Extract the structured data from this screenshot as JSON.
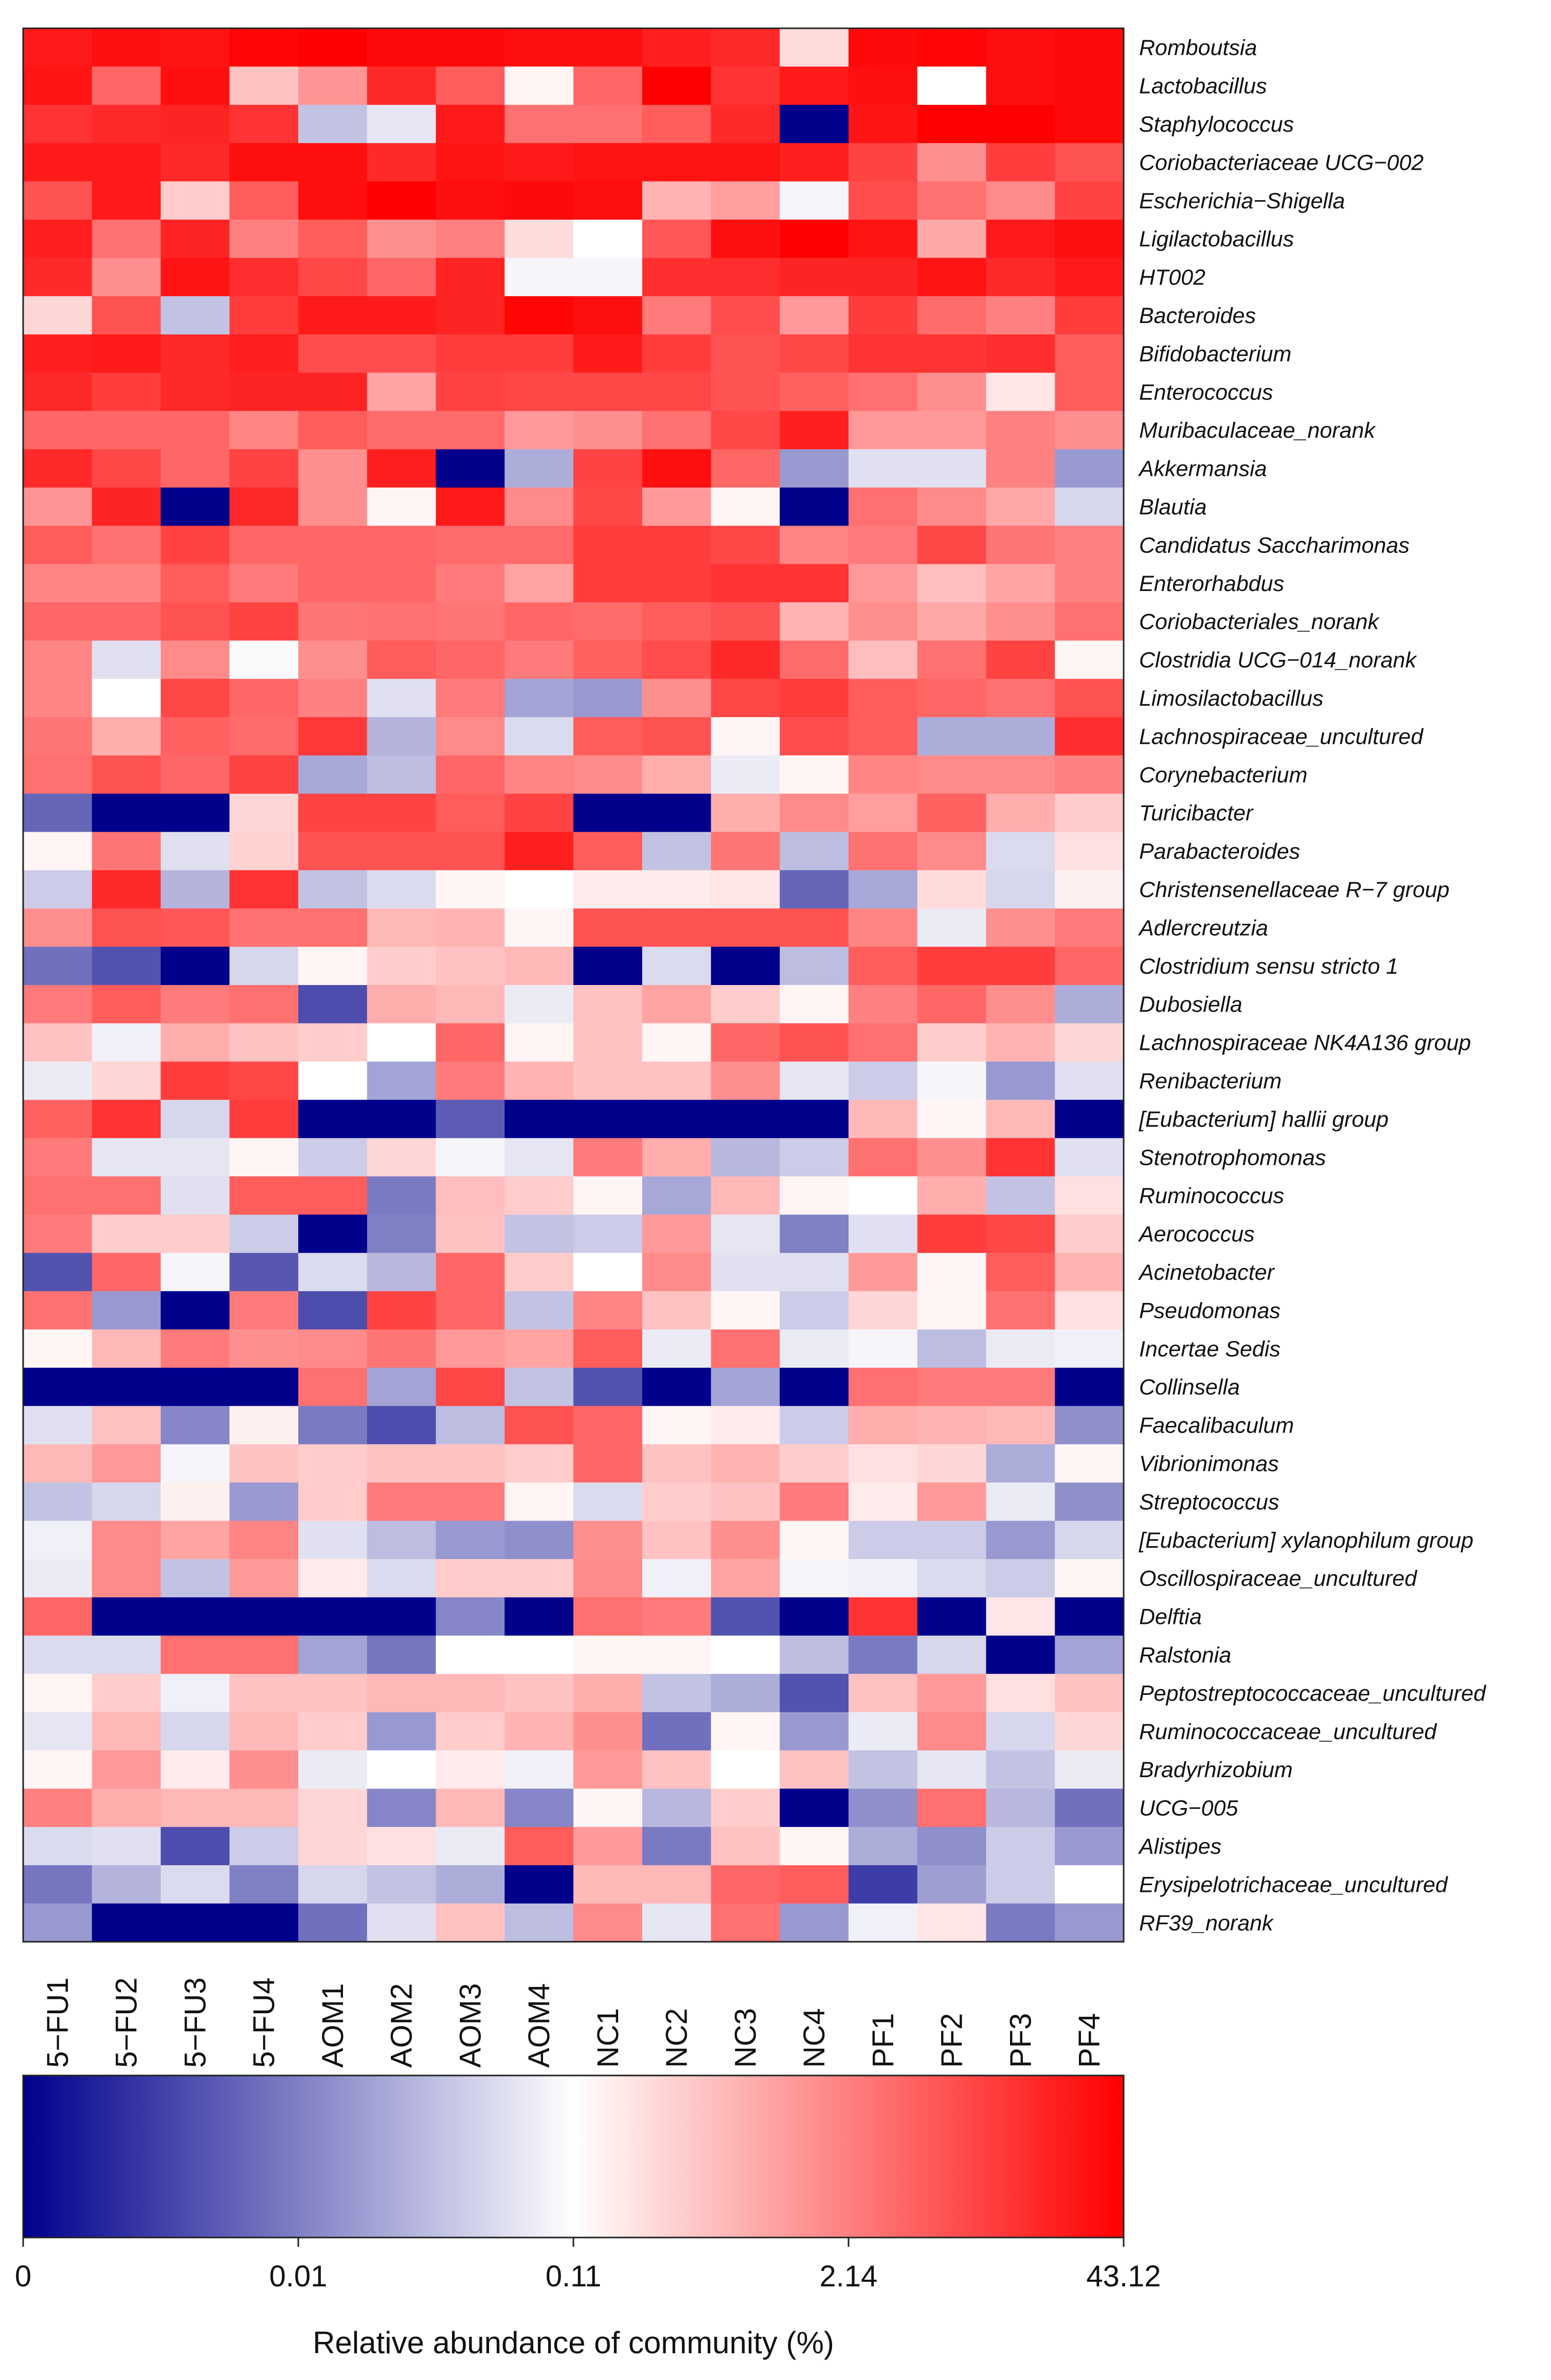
{
  "chart_data": {
    "type": "heatmap",
    "title": "",
    "xlabel": "",
    "ylabel": "",
    "columns": [
      "5−FU1",
      "5−FU2",
      "5−FU3",
      "5−FU4",
      "AOM1",
      "AOM2",
      "AOM3",
      "AOM4",
      "NC1",
      "NC2",
      "NC3",
      "NC4",
      "PF1",
      "PF2",
      "PF3",
      "PF4"
    ],
    "rows": [
      "Romboutsia",
      "Lactobacillus",
      "Staphylococcus",
      "Coriobacteriaceae UCG−002",
      "Escherichia−Shigella",
      "Ligilactobacillus",
      "HT002",
      "Bacteroides",
      "Bifidobacterium",
      "Enterococcus",
      "Muribaculaceae_norank",
      "Akkermansia",
      "Blautia",
      "Candidatus Saccharimonas",
      "Enterorhabdus",
      "Coriobacteriales_norank",
      "Clostridia UCG−014_norank",
      "Limosilactobacillus",
      "Lachnospiraceae_uncultured",
      "Corynebacterium",
      "Turicibacter",
      "Parabacteroides",
      "Christensenellaceae R−7 group",
      "Adlercreutzia",
      "Clostridium sensu stricto 1",
      "Dubosiella",
      "Lachnospiraceae NK4A136 group",
      "Renibacterium",
      "[Eubacterium] hallii group",
      "Stenotrophomonas",
      "Ruminococcus",
      "Aerococcus",
      "Acinetobacter",
      "Pseudomonas",
      "Incertae Sedis",
      "Collinsella",
      "Faecalibaculum",
      "Vibrionimonas",
      "Streptococcus",
      "[Eubacterium] xylanophilum group",
      "Oscillospiraceae_uncultured",
      "Delftia",
      "Ralstonia",
      "Peptostreptococcaceae_uncultured",
      "Ruminococcaceae_uncultured",
      "Bradyrhizobium",
      "UCG−005",
      "Alistipes",
      "Erysipelotrichaceae_uncultured",
      "RF39_norank"
    ],
    "value_scale_note": "values are position on the color scale: 0 = dark blue (0%), 0.5 = white (0.11%), 1 = red (43.12%)",
    "values": [
      [
        0.95,
        0.97,
        0.96,
        0.99,
        1.0,
        0.98,
        0.98,
        0.97,
        0.97,
        0.94,
        0.92,
        0.57,
        0.98,
        0.99,
        0.97,
        0.98
      ],
      [
        0.96,
        0.8,
        0.97,
        0.62,
        0.71,
        0.92,
        0.82,
        0.52,
        0.8,
        1.0,
        0.9,
        0.95,
        0.97,
        0.5,
        0.97,
        0.98
      ],
      [
        0.9,
        0.92,
        0.93,
        0.9,
        0.38,
        0.45,
        0.95,
        0.78,
        0.78,
        0.82,
        0.92,
        0.0,
        0.96,
        1.0,
        1.0,
        0.98
      ],
      [
        0.95,
        0.95,
        0.92,
        0.97,
        0.97,
        0.92,
        0.96,
        0.95,
        0.96,
        0.96,
        0.96,
        0.94,
        0.87,
        0.72,
        0.88,
        0.84
      ],
      [
        0.84,
        0.95,
        0.6,
        0.82,
        0.97,
        1.0,
        0.97,
        0.98,
        0.97,
        0.65,
        0.69,
        0.48,
        0.85,
        0.78,
        0.73,
        0.87
      ],
      [
        0.94,
        0.78,
        0.93,
        0.75,
        0.82,
        0.72,
        0.75,
        0.57,
        0.5,
        0.83,
        0.97,
        1.0,
        0.96,
        0.67,
        0.95,
        0.97
      ],
      [
        0.92,
        0.72,
        0.96,
        0.91,
        0.86,
        0.8,
        0.93,
        0.48,
        0.48,
        0.91,
        0.91,
        0.93,
        0.93,
        0.96,
        0.92,
        0.95
      ],
      [
        0.58,
        0.84,
        0.38,
        0.88,
        0.95,
        0.95,
        0.93,
        0.99,
        0.97,
        0.76,
        0.85,
        0.7,
        0.88,
        0.79,
        0.75,
        0.88
      ],
      [
        0.94,
        0.95,
        0.92,
        0.94,
        0.85,
        0.85,
        0.88,
        0.88,
        0.95,
        0.88,
        0.84,
        0.86,
        0.9,
        0.9,
        0.91,
        0.82
      ],
      [
        0.92,
        0.88,
        0.92,
        0.93,
        0.93,
        0.68,
        0.87,
        0.86,
        0.86,
        0.86,
        0.84,
        0.81,
        0.78,
        0.72,
        0.55,
        0.82
      ],
      [
        0.8,
        0.8,
        0.8,
        0.74,
        0.82,
        0.79,
        0.79,
        0.7,
        0.72,
        0.78,
        0.86,
        0.94,
        0.7,
        0.7,
        0.75,
        0.72
      ],
      [
        0.92,
        0.86,
        0.8,
        0.87,
        0.72,
        0.94,
        0.0,
        0.34,
        0.87,
        0.97,
        0.8,
        0.3,
        0.44,
        0.44,
        0.75,
        0.3
      ],
      [
        0.71,
        0.93,
        0.0,
        0.92,
        0.72,
        0.52,
        0.95,
        0.73,
        0.86,
        0.7,
        0.52,
        0.0,
        0.78,
        0.73,
        0.67,
        0.42
      ],
      [
        0.82,
        0.78,
        0.87,
        0.8,
        0.8,
        0.8,
        0.79,
        0.79,
        0.88,
        0.88,
        0.86,
        0.74,
        0.76,
        0.86,
        0.77,
        0.75
      ],
      [
        0.74,
        0.74,
        0.82,
        0.76,
        0.8,
        0.8,
        0.76,
        0.68,
        0.88,
        0.88,
        0.9,
        0.9,
        0.7,
        0.63,
        0.68,
        0.75
      ],
      [
        0.8,
        0.8,
        0.84,
        0.87,
        0.77,
        0.78,
        0.77,
        0.8,
        0.79,
        0.82,
        0.84,
        0.65,
        0.72,
        0.67,
        0.72,
        0.78
      ],
      [
        0.74,
        0.44,
        0.73,
        0.49,
        0.72,
        0.82,
        0.8,
        0.76,
        0.81,
        0.85,
        0.92,
        0.79,
        0.63,
        0.78,
        0.87,
        0.52
      ],
      [
        0.74,
        0.5,
        0.86,
        0.8,
        0.75,
        0.44,
        0.76,
        0.32,
        0.3,
        0.72,
        0.86,
        0.88,
        0.82,
        0.8,
        0.78,
        0.84
      ],
      [
        0.77,
        0.66,
        0.81,
        0.79,
        0.89,
        0.35,
        0.73,
        0.43,
        0.82,
        0.84,
        0.52,
        0.85,
        0.82,
        0.34,
        0.34,
        0.91
      ],
      [
        0.78,
        0.84,
        0.8,
        0.87,
        0.33,
        0.37,
        0.8,
        0.74,
        0.73,
        0.66,
        0.46,
        0.52,
        0.74,
        0.73,
        0.73,
        0.75
      ],
      [
        0.2,
        0.0,
        0.0,
        0.58,
        0.87,
        0.87,
        0.82,
        0.87,
        0.0,
        0.0,
        0.66,
        0.73,
        0.69,
        0.81,
        0.66,
        0.6
      ],
      [
        0.52,
        0.77,
        0.44,
        0.59,
        0.84,
        0.84,
        0.84,
        0.94,
        0.82,
        0.38,
        0.77,
        0.37,
        0.78,
        0.73,
        0.43,
        0.56
      ],
      [
        0.4,
        0.92,
        0.35,
        0.9,
        0.38,
        0.43,
        0.52,
        0.5,
        0.54,
        0.54,
        0.55,
        0.2,
        0.33,
        0.57,
        0.42,
        0.53
      ],
      [
        0.72,
        0.84,
        0.83,
        0.78,
        0.78,
        0.64,
        0.65,
        0.52,
        0.84,
        0.84,
        0.84,
        0.84,
        0.74,
        0.46,
        0.72,
        0.76
      ],
      [
        0.22,
        0.16,
        0.0,
        0.42,
        0.52,
        0.6,
        0.62,
        0.64,
        0.0,
        0.43,
        0.0,
        0.37,
        0.82,
        0.88,
        0.88,
        0.8
      ],
      [
        0.76,
        0.82,
        0.76,
        0.78,
        0.15,
        0.66,
        0.64,
        0.46,
        0.62,
        0.68,
        0.6,
        0.52,
        0.75,
        0.8,
        0.72,
        0.34
      ],
      [
        0.62,
        0.47,
        0.66,
        0.62,
        0.6,
        0.5,
        0.8,
        0.52,
        0.62,
        0.52,
        0.8,
        0.84,
        0.78,
        0.6,
        0.65,
        0.58
      ],
      [
        0.46,
        0.58,
        0.88,
        0.86,
        0.5,
        0.32,
        0.76,
        0.65,
        0.62,
        0.62,
        0.72,
        0.45,
        0.4,
        0.48,
        0.3,
        0.44
      ],
      [
        0.81,
        0.9,
        0.42,
        0.88,
        0.0,
        0.0,
        0.18,
        0.0,
        0.0,
        0.0,
        0.0,
        0.0,
        0.64,
        0.52,
        0.64,
        0.0
      ],
      [
        0.76,
        0.45,
        0.45,
        0.52,
        0.4,
        0.58,
        0.48,
        0.45,
        0.76,
        0.66,
        0.36,
        0.4,
        0.78,
        0.72,
        0.9,
        0.44
      ],
      [
        0.78,
        0.78,
        0.44,
        0.82,
        0.82,
        0.24,
        0.63,
        0.6,
        0.52,
        0.33,
        0.64,
        0.52,
        0.5,
        0.66,
        0.38,
        0.56
      ],
      [
        0.76,
        0.6,
        0.6,
        0.4,
        0.0,
        0.25,
        0.62,
        0.38,
        0.4,
        0.7,
        0.45,
        0.25,
        0.44,
        0.88,
        0.86,
        0.6
      ],
      [
        0.16,
        0.8,
        0.48,
        0.17,
        0.43,
        0.36,
        0.8,
        0.6,
        0.5,
        0.73,
        0.44,
        0.44,
        0.7,
        0.52,
        0.82,
        0.65
      ],
      [
        0.78,
        0.3,
        0.0,
        0.76,
        0.15,
        0.87,
        0.8,
        0.38,
        0.74,
        0.62,
        0.52,
        0.4,
        0.58,
        0.52,
        0.78,
        0.56
      ],
      [
        0.52,
        0.64,
        0.76,
        0.72,
        0.73,
        0.77,
        0.7,
        0.68,
        0.82,
        0.46,
        0.78,
        0.46,
        0.48,
        0.37,
        0.46,
        0.47
      ],
      [
        0.0,
        0.0,
        0.0,
        0.0,
        0.78,
        0.32,
        0.86,
        0.38,
        0.16,
        0.0,
        0.32,
        0.0,
        0.78,
        0.76,
        0.76,
        0.0
      ],
      [
        0.44,
        0.62,
        0.26,
        0.53,
        0.24,
        0.15,
        0.37,
        0.84,
        0.8,
        0.52,
        0.54,
        0.4,
        0.66,
        0.65,
        0.64,
        0.28
      ],
      [
        0.64,
        0.7,
        0.48,
        0.62,
        0.6,
        0.62,
        0.62,
        0.6,
        0.8,
        0.62,
        0.65,
        0.6,
        0.56,
        0.58,
        0.34,
        0.52
      ],
      [
        0.38,
        0.42,
        0.53,
        0.3,
        0.6,
        0.76,
        0.76,
        0.52,
        0.43,
        0.6,
        0.62,
        0.76,
        0.54,
        0.7,
        0.46,
        0.28
      ],
      [
        0.47,
        0.73,
        0.68,
        0.74,
        0.44,
        0.37,
        0.3,
        0.28,
        0.72,
        0.62,
        0.72,
        0.52,
        0.4,
        0.4,
        0.3,
        0.42
      ],
      [
        0.46,
        0.73,
        0.38,
        0.7,
        0.54,
        0.43,
        0.6,
        0.6,
        0.73,
        0.47,
        0.68,
        0.48,
        0.47,
        0.43,
        0.4,
        0.52
      ],
      [
        0.8,
        0.0,
        0.0,
        0.0,
        0.0,
        0.0,
        0.26,
        0.0,
        0.78,
        0.76,
        0.16,
        0.0,
        0.9,
        0.0,
        0.55,
        0.0
      ],
      [
        0.43,
        0.43,
        0.78,
        0.78,
        0.32,
        0.23,
        0.5,
        0.5,
        0.52,
        0.52,
        0.5,
        0.37,
        0.24,
        0.42,
        0.0,
        0.32
      ],
      [
        0.52,
        0.6,
        0.47,
        0.62,
        0.62,
        0.64,
        0.64,
        0.62,
        0.66,
        0.38,
        0.34,
        0.16,
        0.62,
        0.7,
        0.56,
        0.62
      ],
      [
        0.45,
        0.64,
        0.42,
        0.64,
        0.6,
        0.3,
        0.6,
        0.65,
        0.72,
        0.22,
        0.52,
        0.3,
        0.46,
        0.73,
        0.42,
        0.58
      ],
      [
        0.52,
        0.7,
        0.54,
        0.72,
        0.46,
        0.5,
        0.54,
        0.47,
        0.7,
        0.62,
        0.5,
        0.62,
        0.38,
        0.45,
        0.38,
        0.46
      ],
      [
        0.75,
        0.66,
        0.64,
        0.64,
        0.58,
        0.26,
        0.64,
        0.26,
        0.52,
        0.36,
        0.6,
        0.0,
        0.28,
        0.78,
        0.36,
        0.22
      ],
      [
        0.43,
        0.44,
        0.15,
        0.4,
        0.58,
        0.56,
        0.46,
        0.82,
        0.7,
        0.24,
        0.62,
        0.52,
        0.34,
        0.28,
        0.4,
        0.3
      ],
      [
        0.23,
        0.35,
        0.43,
        0.25,
        0.42,
        0.38,
        0.34,
        0.0,
        0.64,
        0.64,
        0.8,
        0.82,
        0.12,
        0.31,
        0.4,
        0.5
      ],
      [
        0.3,
        0.0,
        0.0,
        0.0,
        0.22,
        0.44,
        0.62,
        0.37,
        0.73,
        0.45,
        0.78,
        0.3,
        0.47,
        0.55,
        0.24,
        0.3
      ]
    ],
    "colorbar": {
      "tick_labels": [
        "0",
        "0.01",
        "0.11",
        "2.14",
        "43.12"
      ],
      "title": "Relative abundance of community (%)",
      "colors": {
        "low": "#00008B",
        "mid": "#FFFFFF",
        "high": "#FF0000"
      }
    },
    "grid": false,
    "legend": "bottom"
  }
}
